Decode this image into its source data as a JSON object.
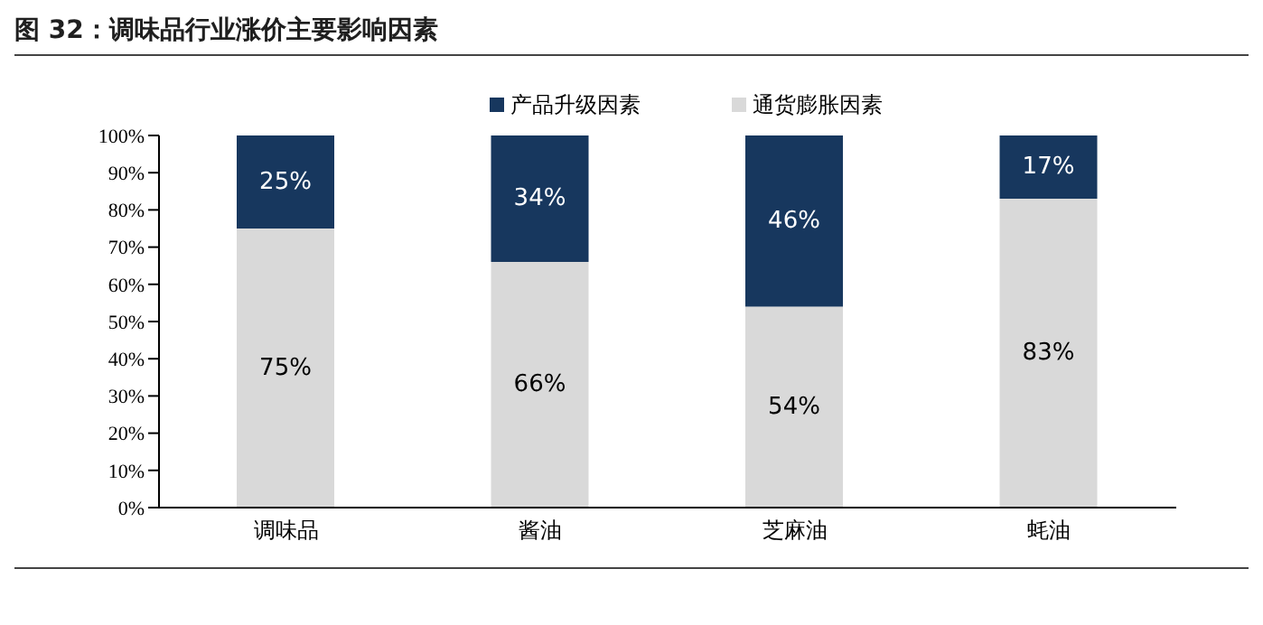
{
  "chart_data": {
    "type": "bar",
    "title": "图 32：调味品行业涨价主要影响因素",
    "stacked": true,
    "legend": "top",
    "categories": [
      "调味品",
      "酱油",
      "芝麻油",
      "蚝油"
    ],
    "series": [
      {
        "name": "通货膨胀因素",
        "color": "#d9d9d9",
        "values": [
          75,
          66,
          54,
          83
        ],
        "value_labels": [
          "75%",
          "66%",
          "54%",
          "83%"
        ]
      },
      {
        "name": "产品升级因素",
        "color": "#17375e",
        "values": [
          25,
          34,
          46,
          17
        ],
        "value_labels": [
          "25%",
          "34%",
          "46%",
          "17%"
        ]
      }
    ],
    "ylim": [
      0,
      100
    ],
    "yticks": [
      {
        "value": 0,
        "label": "0%"
      },
      {
        "value": 10,
        "label": "10%"
      },
      {
        "value": 20,
        "label": "20%"
      },
      {
        "value": 30,
        "label": "30%"
      },
      {
        "value": 40,
        "label": "40%"
      },
      {
        "value": 50,
        "label": "50%"
      },
      {
        "value": 60,
        "label": "60%"
      },
      {
        "value": 70,
        "label": "70%"
      },
      {
        "value": 80,
        "label": "80%"
      },
      {
        "value": 90,
        "label": "90%"
      },
      {
        "value": 100,
        "label": "100%"
      }
    ]
  }
}
